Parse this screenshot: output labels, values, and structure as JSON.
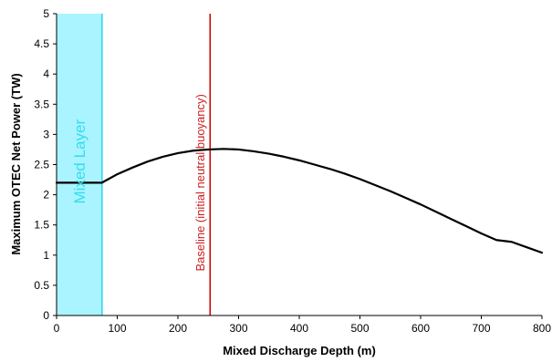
{
  "chart_data": {
    "type": "line",
    "title": "",
    "xlabel": "Mixed Discharge Depth (m)",
    "ylabel": "Maximum OTEC Net Power (TW)",
    "xlim": [
      0,
      800
    ],
    "ylim": [
      0,
      5
    ],
    "xticks": [
      0,
      100,
      200,
      300,
      400,
      500,
      600,
      700,
      800
    ],
    "yticks": [
      0,
      0.5,
      1,
      1.5,
      2,
      2.5,
      3,
      3.5,
      4,
      4.5,
      5
    ],
    "xtick_labels": [
      "0",
      "100",
      "200",
      "300",
      "400",
      "500",
      "600",
      "700",
      "800"
    ],
    "ytick_labels": [
      "0",
      "0.5",
      "1",
      "1.5",
      "2",
      "2.5",
      "3",
      "3.5",
      "4",
      "4.5",
      "5"
    ],
    "grid": false,
    "legend": "none",
    "series": [
      {
        "color": "#000000",
        "x": [
          0,
          20,
          40,
          60,
          75,
          80,
          100,
          125,
          150,
          175,
          200,
          225,
          250,
          275,
          300,
          325,
          350,
          375,
          400,
          425,
          450,
          475,
          500,
          525,
          550,
          575,
          600,
          625,
          650,
          675,
          700,
          725,
          750,
          775,
          800
        ],
        "y": [
          2.2,
          2.2,
          2.2,
          2.2,
          2.2,
          2.23,
          2.34,
          2.45,
          2.55,
          2.63,
          2.69,
          2.73,
          2.75,
          2.76,
          2.75,
          2.72,
          2.68,
          2.63,
          2.57,
          2.5,
          2.43,
          2.35,
          2.26,
          2.16,
          2.06,
          1.95,
          1.84,
          1.72,
          1.6,
          1.48,
          1.36,
          1.25,
          1.22,
          1.13,
          1.04
        ]
      }
    ],
    "annotations": [
      {
        "kind": "band",
        "label": "Mixed Layer",
        "x_start": 0,
        "x_end": 75,
        "fill": "#aaf4ff",
        "edge_color": "#00ccee",
        "text_color": "#33ddee"
      },
      {
        "kind": "vline",
        "label": "Baseline (initial neutral buoyancy)",
        "x": 253,
        "color": "#cc0000",
        "text_color": "#cc2222"
      }
    ]
  }
}
